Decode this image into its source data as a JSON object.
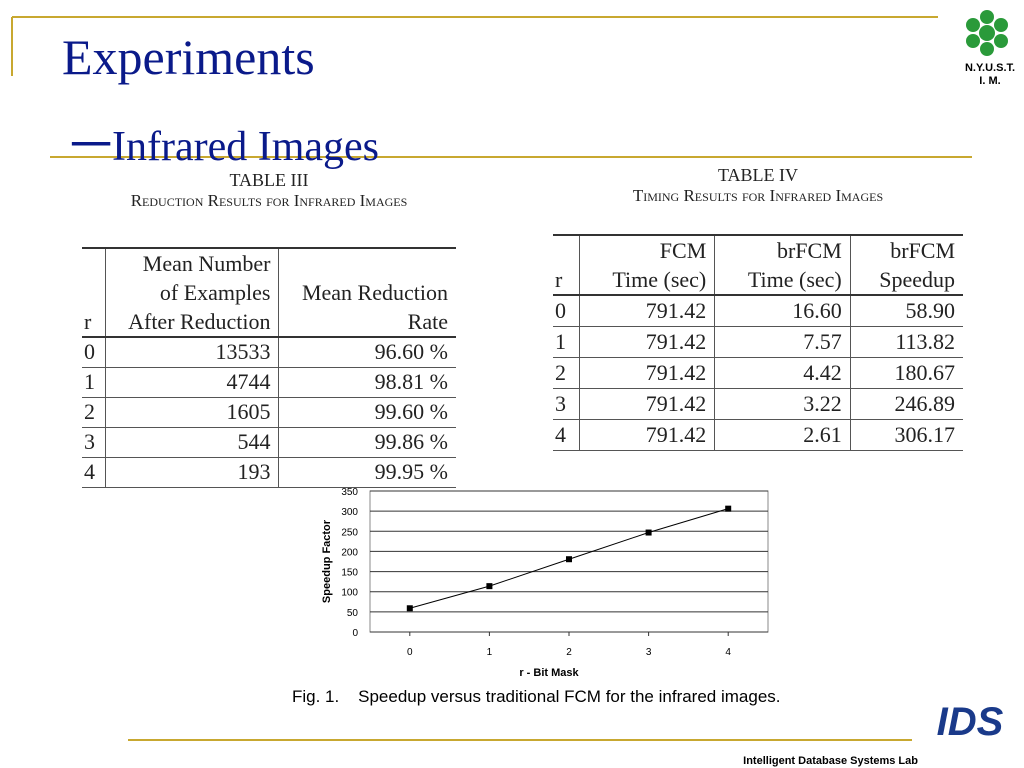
{
  "title": "Experiments",
  "subtitle": "一Infrared Images",
  "logo": {
    "line1": "N.Y.U.S.T.",
    "line2": "I. M."
  },
  "footer": "Intelligent Database Systems Lab",
  "table3": {
    "number": "TABLE III",
    "caption": "Reduction Results for Infrared Images",
    "headers": [
      [
        "r"
      ],
      [
        "Mean Number",
        "of Examples",
        "After Reduction"
      ],
      [
        "Mean Reduction",
        "Rate"
      ]
    ],
    "rows": [
      [
        "0",
        "13533",
        "96.60 %"
      ],
      [
        "1",
        "4744",
        "98.81 %"
      ],
      [
        "2",
        "1605",
        "99.60 %"
      ],
      [
        "3",
        "544",
        "99.86 %"
      ],
      [
        "4",
        "193",
        "99.95 %"
      ]
    ]
  },
  "table4": {
    "number": "TABLE IV",
    "caption": "Timing Results for Infrared Images",
    "headers": [
      [
        "r"
      ],
      [
        "FCM",
        "Time (sec)"
      ],
      [
        "brFCM",
        "Time (sec)"
      ],
      [
        "brFCM",
        "Speedup"
      ]
    ],
    "rows": [
      [
        "0",
        "791.42",
        "16.60",
        "58.90"
      ],
      [
        "1",
        "791.42",
        "7.57",
        "113.82"
      ],
      [
        "2",
        "791.42",
        "4.42",
        "180.67"
      ],
      [
        "3",
        "791.42",
        "3.22",
        "246.89"
      ],
      [
        "4",
        "791.42",
        "2.61",
        "306.17"
      ]
    ]
  },
  "chart_data": {
    "type": "line",
    "x": [
      0,
      1,
      2,
      3,
      4
    ],
    "values": [
      58.9,
      113.82,
      180.67,
      246.89,
      306.17
    ],
    "color": "#000000",
    "xlim": [
      -0.5,
      4.5
    ],
    "xticks": [
      0,
      1,
      2,
      3,
      4
    ],
    "ylim": [
      0,
      350
    ],
    "yticks": [
      0,
      50,
      100,
      150,
      200,
      250,
      300,
      350
    ],
    "grid": true,
    "x_label": "r - Bit Mask",
    "y_label": "Speedup Factor",
    "caption": "Fig. 1.    Speedup versus traditional FCM for the infrared images."
  }
}
